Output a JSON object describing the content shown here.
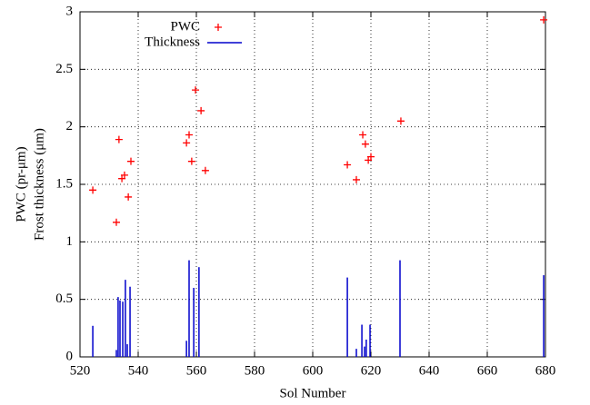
{
  "chart_data": {
    "type": "scatter",
    "xlabel": "Sol Number",
    "ylabel": [
      "PWC (pr-μm)",
      "Frost thickness (μm)"
    ],
    "xlim": [
      520,
      680
    ],
    "xticks": [
      520,
      540,
      560,
      580,
      600,
      620,
      640,
      660,
      680
    ],
    "ylim": [
      0,
      3
    ],
    "yticks": [
      0,
      0.5,
      1,
      1.5,
      2,
      2.5,
      3
    ],
    "grid": true,
    "legend": "top-left",
    "series": [
      {
        "name": "PWC",
        "color": "#ff0000",
        "style": "points",
        "x": [
          524.4,
          532.5,
          533.4,
          534.4,
          535.3,
          536.6,
          537.5,
          556.6,
          557.5,
          558.4,
          559.7,
          561.6,
          563.1,
          611.9,
          615,
          617.2,
          618.1,
          619.1,
          620,
          630.3,
          679.4
        ],
        "values": [
          1.45,
          1.17,
          1.89,
          1.55,
          1.58,
          1.39,
          1.7,
          1.86,
          1.93,
          1.7,
          2.32,
          2.14,
          1.62,
          1.67,
          1.54,
          1.93,
          1.85,
          1.71,
          1.74,
          2.05,
          2.93
        ]
      },
      {
        "name": "Thickness",
        "color": "#0000cc",
        "style": "impulses",
        "x": [
          524.4,
          532.5,
          533.1,
          533.75,
          534.7,
          535.6,
          536.25,
          537.2,
          556.6,
          557.5,
          559.1,
          560.9,
          611.9,
          615,
          616.9,
          617.8,
          618.4,
          619.7,
          630,
          679.4
        ],
        "values": [
          0.27,
          0.06,
          0.52,
          0.49,
          0.48,
          0.67,
          0.11,
          0.61,
          0.14,
          0.84,
          0.6,
          0.78,
          0.69,
          0.07,
          0.28,
          0.09,
          0.15,
          0.28,
          0.84,
          0.71
        ]
      }
    ]
  }
}
